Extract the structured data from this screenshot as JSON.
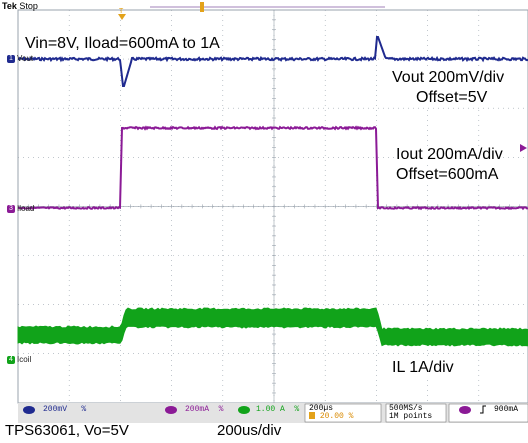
{
  "scope": {
    "brand": "Tek",
    "run_state": "Stop",
    "colors": {
      "ch1": "#1f2a8f",
      "ch3": "#8b1a96",
      "ch4": "#11a31a",
      "grid": "#9aa3ad",
      "status_bg": "#e3e3e3"
    }
  },
  "channels": {
    "ch1": {
      "number": "1",
      "label": "Vout"
    },
    "ch3": {
      "number": "3",
      "label": "Iload"
    },
    "ch4": {
      "number": "4",
      "label": "Icoil"
    }
  },
  "annotations": {
    "conditions": "Vin=8V, Iload=600mA to 1A",
    "vout_scale": "Vout 200mV/div",
    "vout_offset": "Offset=5V",
    "iout_scale": "Iout 200mA/div",
    "iout_offset": "Offset=600mA",
    "il_scale": "IL 1A/div"
  },
  "status_bar": {
    "ch1_scale": "200mV",
    "ch1_bw": "%",
    "ch3_scale": "200mA",
    "ch3_bw": "%",
    "ch4_scale": "1.00 A",
    "ch4_bw": "%",
    "timebase": "200µs",
    "trigger_position": "20.00 %",
    "sample_rate": "500MS/s",
    "record_length": "1M points",
    "trigger_level": "900mA"
  },
  "caption": {
    "device": "TPS63061, Vo=5V",
    "timebase": "200us/div"
  }
}
